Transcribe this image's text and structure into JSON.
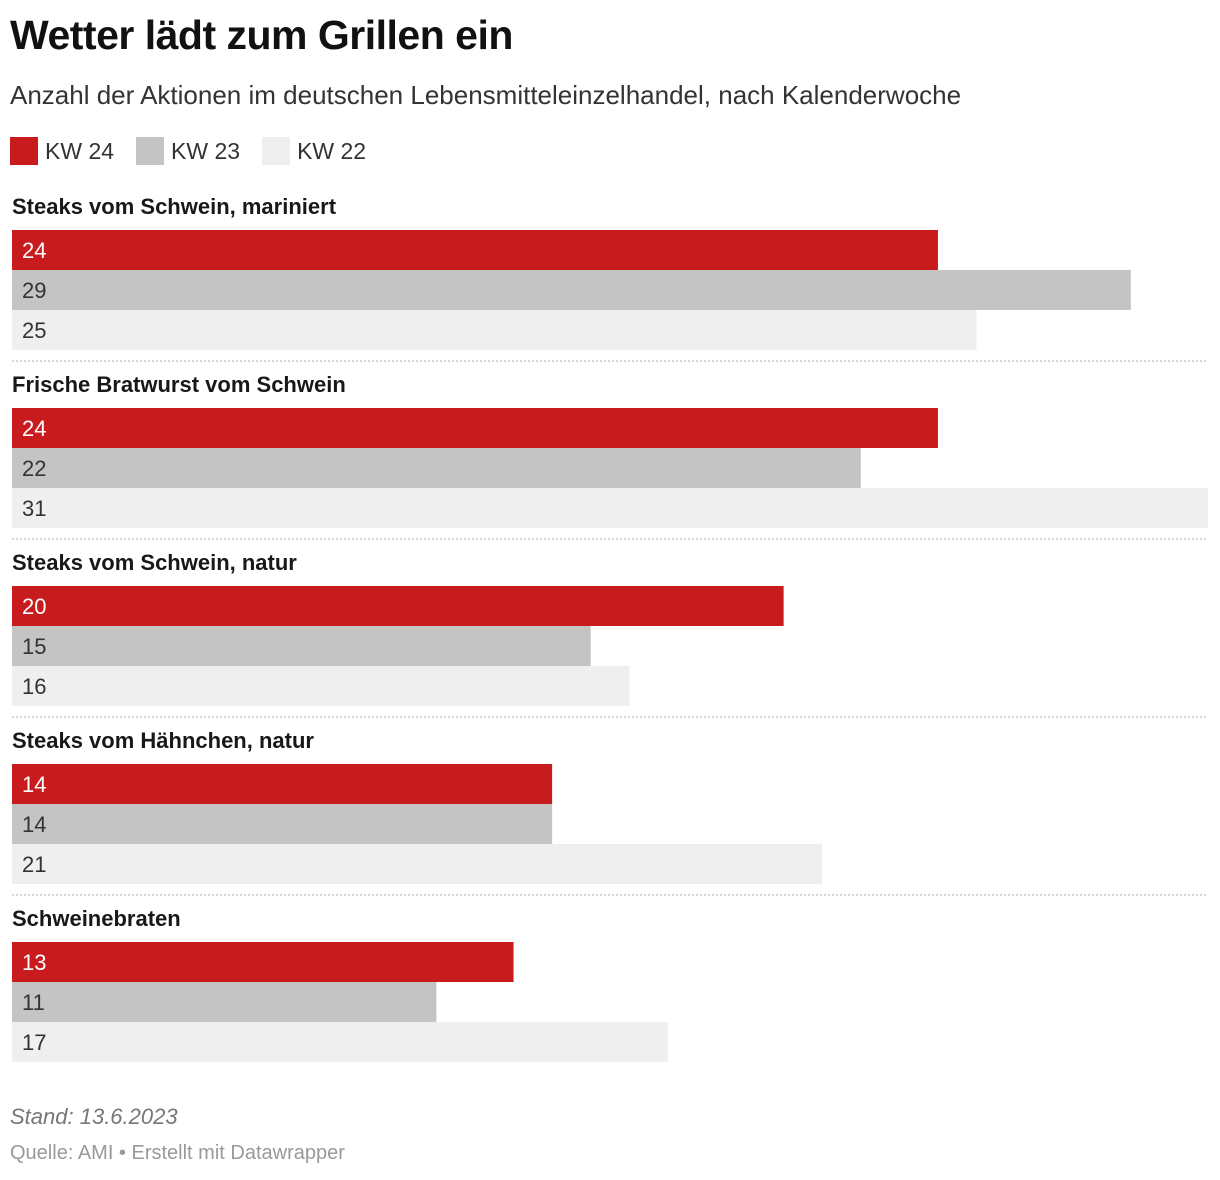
{
  "title": "Wetter lädt zum Grillen ein",
  "subtitle": "Anzahl der Aktionen im deutschen Lebensmitteleinzelhandel, nach Kalenderwoche",
  "notes": "Stand: 13.6.2023",
  "source": "Quelle: AMI • Erstellt mit Datawrapper",
  "colors": {
    "KW 24": "#c71b1e",
    "KW 23": "#c4c4c4",
    "KW 22": "#efefef"
  },
  "chart_data": {
    "type": "bar",
    "orientation": "horizontal",
    "xlim": [
      0,
      31
    ],
    "grid": false,
    "legend": "top-left",
    "categories": [
      "Steaks vom Schwein, mariniert",
      "Frische Bratwurst vom Schwein",
      "Steaks vom Schwein, natur",
      "Steaks vom Hähnchen, natur",
      "Schweinebraten"
    ],
    "series": [
      {
        "name": "KW 24",
        "values": [
          24,
          24,
          20,
          14,
          13
        ]
      },
      {
        "name": "KW 23",
        "values": [
          29,
          22,
          15,
          14,
          11
        ]
      },
      {
        "name": "KW 22",
        "values": [
          25,
          31,
          16,
          21,
          17
        ]
      }
    ]
  }
}
